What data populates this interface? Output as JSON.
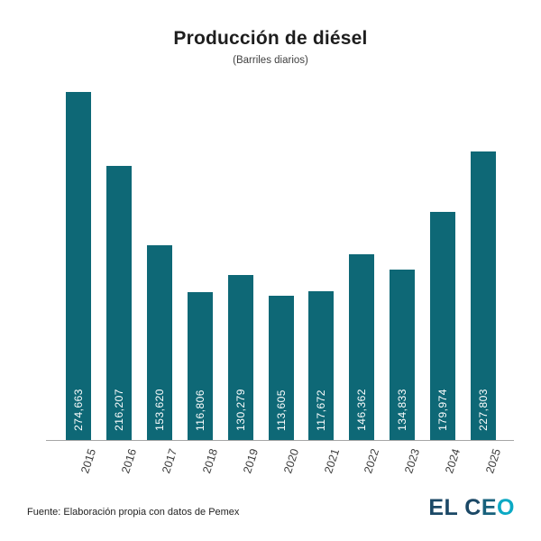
{
  "chart_data": {
    "type": "bar",
    "title": "Producción de diésel",
    "subtitle": "(Barriles diarios)",
    "categories": [
      "2015",
      "2016",
      "2017",
      "2018",
      "2019",
      "2020",
      "2021",
      "2022",
      "2023",
      "2024",
      "2025"
    ],
    "values": [
      274663,
      216207,
      153620,
      116806,
      130279,
      113605,
      117672,
      146362,
      134833,
      179974,
      227803
    ],
    "value_labels": [
      "274,663",
      "216,207",
      "153,620",
      "116,806",
      "130,279",
      "113,605",
      "117,672",
      "146,362",
      "134,833",
      "179,974",
      "227,803"
    ],
    "xlabel": "",
    "ylabel": "",
    "ylim": [
      0,
      274663
    ],
    "grid": false,
    "legend": false,
    "bar_color": "#0e6876",
    "value_label_color": "#ffffff",
    "axis_line_color": "#a6a6a6",
    "tick_label_rotation_deg": 72,
    "value_label_orientation": "vertical-bottom-to-top"
  },
  "footer": {
    "source": "Fuente: Elaboración propia con datos de Pemex",
    "logo": {
      "parts": [
        {
          "text": "EL C",
          "color": "#1b4866"
        },
        {
          "text": "E",
          "color": "#17617c"
        },
        {
          "text": "O",
          "color": "#0ba9c4"
        }
      ]
    }
  }
}
